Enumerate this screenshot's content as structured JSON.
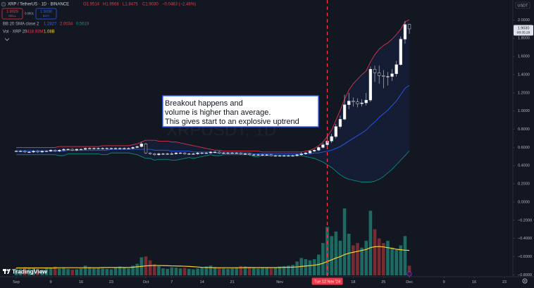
{
  "chart_data": {
    "type": "candlestick",
    "symbol": "XRP / TetherUS · 1D · BINANCE",
    "ohlc_legend": [
      "O1.9514",
      "H1.9568",
      "L1.8475",
      "C1.9030",
      "−0.0483 (−2.48%)"
    ],
    "trade_buttons": {
      "sell_price": "1.9029",
      "sell": "SELL",
      "spread": "0.0001",
      "buy_price": "1.9030",
      "buy": "BUY"
    },
    "bb_legend": {
      "name": "BB 20 SMA close 2",
      "values": [
        "1.2827",
        "2.0034",
        "0.5619"
      ]
    },
    "vol_legend": {
      "name": "Vol · XRP 20",
      "values": [
        "418.93M",
        "1.08B"
      ]
    },
    "currency": "USDT",
    "watermark": "XRPUSDT, 1D",
    "branding": "TradingView",
    "annotation": [
      "Breakout happens and",
      "volume is higher than average.",
      "This gives start to an explosive uptrend"
    ],
    "last_price_label": "1.9030",
    "countdown": "08:35:29",
    "crosshair": {
      "value": "2024-11-12",
      "label": "Tue 12 Nov '24",
      "color": "#f23645"
    },
    "x": [
      "2024-09-01",
      "2024-09-02",
      "2024-09-03",
      "2024-09-04",
      "2024-09-05",
      "2024-09-06",
      "2024-09-07",
      "2024-09-08",
      "2024-09-09",
      "2024-09-10",
      "2024-09-11",
      "2024-09-12",
      "2024-09-13",
      "2024-09-14",
      "2024-09-15",
      "2024-09-16",
      "2024-09-17",
      "2024-09-18",
      "2024-09-19",
      "2024-09-20",
      "2024-09-21",
      "2024-09-22",
      "2024-09-23",
      "2024-09-24",
      "2024-09-25",
      "2024-09-26",
      "2024-09-27",
      "2024-09-28",
      "2024-09-29",
      "2024-09-30",
      "2024-10-01",
      "2024-10-02",
      "2024-10-03",
      "2024-10-04",
      "2024-10-05",
      "2024-10-06",
      "2024-10-07",
      "2024-10-08",
      "2024-10-09",
      "2024-10-10",
      "2024-10-11",
      "2024-10-12",
      "2024-10-13",
      "2024-10-14",
      "2024-10-15",
      "2024-10-16",
      "2024-10-17",
      "2024-10-18",
      "2024-10-19",
      "2024-10-20",
      "2024-10-21",
      "2024-10-22",
      "2024-10-23",
      "2024-10-24",
      "2024-10-25",
      "2024-10-26",
      "2024-10-27",
      "2024-10-28",
      "2024-10-29",
      "2024-10-30",
      "2024-10-31",
      "2024-11-01",
      "2024-11-02",
      "2024-11-03",
      "2024-11-04",
      "2024-11-05",
      "2024-11-06",
      "2024-11-07",
      "2024-11-08",
      "2024-11-09",
      "2024-11-10",
      "2024-11-11",
      "2024-11-12",
      "2024-11-13",
      "2024-11-14",
      "2024-11-15",
      "2024-11-16",
      "2024-11-17",
      "2024-11-18",
      "2024-11-19",
      "2024-11-20",
      "2024-11-21",
      "2024-11-22",
      "2024-11-23",
      "2024-11-24",
      "2024-11-25",
      "2024-11-26",
      "2024-11-27",
      "2024-11-28",
      "2024-11-29",
      "2024-11-30",
      "2024-12-01"
    ],
    "open": [
      0.56,
      0.56,
      0.56,
      0.55,
      0.55,
      0.56,
      0.55,
      0.56,
      0.56,
      0.57,
      0.56,
      0.57,
      0.58,
      0.58,
      0.57,
      0.58,
      0.58,
      0.59,
      0.59,
      0.59,
      0.59,
      0.59,
      0.59,
      0.59,
      0.59,
      0.59,
      0.59,
      0.59,
      0.6,
      0.61,
      0.64,
      0.54,
      0.53,
      0.52,
      0.53,
      0.53,
      0.53,
      0.53,
      0.54,
      0.54,
      0.53,
      0.53,
      0.53,
      0.54,
      0.54,
      0.54,
      0.55,
      0.55,
      0.54,
      0.54,
      0.54,
      0.54,
      0.54,
      0.53,
      0.53,
      0.52,
      0.52,
      0.52,
      0.52,
      0.52,
      0.51,
      0.51,
      0.51,
      0.51,
      0.51,
      0.51,
      0.52,
      0.53,
      0.54,
      0.56,
      0.57,
      0.6,
      0.63,
      0.67,
      0.72,
      0.83,
      0.91,
      1.07,
      1.11,
      1.1,
      1.08,
      1.09,
      1.12,
      1.46,
      1.42,
      1.39,
      1.38,
      1.38,
      1.41,
      1.51,
      1.79,
      1.9514
    ],
    "high": [
      0.57,
      0.57,
      0.57,
      0.56,
      0.57,
      0.57,
      0.57,
      0.57,
      0.58,
      0.58,
      0.58,
      0.59,
      0.59,
      0.59,
      0.59,
      0.59,
      0.6,
      0.6,
      0.6,
      0.6,
      0.6,
      0.6,
      0.6,
      0.6,
      0.6,
      0.6,
      0.6,
      0.61,
      0.62,
      0.66,
      0.65,
      0.55,
      0.54,
      0.54,
      0.54,
      0.54,
      0.55,
      0.55,
      0.55,
      0.55,
      0.54,
      0.54,
      0.55,
      0.55,
      0.55,
      0.56,
      0.56,
      0.56,
      0.55,
      0.55,
      0.55,
      0.55,
      0.55,
      0.54,
      0.54,
      0.53,
      0.53,
      0.53,
      0.53,
      0.53,
      0.52,
      0.52,
      0.52,
      0.52,
      0.52,
      0.53,
      0.55,
      0.55,
      0.57,
      0.58,
      0.61,
      0.65,
      0.72,
      0.75,
      0.86,
      0.95,
      1.18,
      1.2,
      1.15,
      1.14,
      1.13,
      1.2,
      1.49,
      1.5,
      1.5,
      1.45,
      1.43,
      1.46,
      1.55,
      1.82,
      1.99,
      1.9568
    ],
    "low": [
      0.55,
      0.55,
      0.54,
      0.54,
      0.54,
      0.54,
      0.54,
      0.55,
      0.55,
      0.55,
      0.55,
      0.56,
      0.57,
      0.56,
      0.56,
      0.57,
      0.57,
      0.58,
      0.58,
      0.58,
      0.58,
      0.58,
      0.58,
      0.58,
      0.58,
      0.58,
      0.58,
      0.58,
      0.59,
      0.6,
      0.53,
      0.52,
      0.51,
      0.51,
      0.52,
      0.52,
      0.52,
      0.52,
      0.53,
      0.52,
      0.52,
      0.52,
      0.52,
      0.53,
      0.53,
      0.53,
      0.54,
      0.53,
      0.53,
      0.53,
      0.53,
      0.53,
      0.52,
      0.52,
      0.51,
      0.51,
      0.51,
      0.51,
      0.51,
      0.5,
      0.5,
      0.5,
      0.5,
      0.5,
      0.5,
      0.5,
      0.51,
      0.52,
      0.53,
      0.55,
      0.56,
      0.59,
      0.61,
      0.65,
      0.7,
      0.81,
      0.9,
      1.02,
      1.05,
      1.04,
      1.05,
      1.06,
      1.1,
      1.32,
      1.3,
      1.25,
      1.28,
      1.33,
      1.38,
      1.5,
      1.74,
      1.8475
    ],
    "close": [
      0.56,
      0.56,
      0.55,
      0.55,
      0.56,
      0.55,
      0.56,
      0.56,
      0.57,
      0.56,
      0.57,
      0.58,
      0.58,
      0.57,
      0.58,
      0.58,
      0.59,
      0.59,
      0.59,
      0.59,
      0.59,
      0.59,
      0.59,
      0.59,
      0.59,
      0.59,
      0.59,
      0.6,
      0.61,
      0.64,
      0.54,
      0.53,
      0.52,
      0.53,
      0.53,
      0.53,
      0.53,
      0.54,
      0.54,
      0.53,
      0.53,
      0.53,
      0.54,
      0.54,
      0.54,
      0.55,
      0.55,
      0.54,
      0.54,
      0.54,
      0.54,
      0.54,
      0.53,
      0.53,
      0.52,
      0.52,
      0.52,
      0.52,
      0.52,
      0.51,
      0.51,
      0.51,
      0.51,
      0.51,
      0.51,
      0.52,
      0.53,
      0.54,
      0.56,
      0.57,
      0.6,
      0.63,
      0.67,
      0.72,
      0.83,
      0.91,
      1.07,
      1.11,
      1.1,
      1.08,
      1.09,
      1.12,
      1.46,
      1.42,
      1.39,
      1.38,
      1.38,
      1.41,
      1.51,
      1.79,
      1.95,
      1.903
    ],
    "up_color": "#ffffff",
    "down_color": "#131722",
    "border_color": "#d1d4dc",
    "ylim": [
      -0.82,
      2.22
    ],
    "yticks": [
      {
        "value": 2,
        "label": "2.0000"
      },
      {
        "value": 1.8,
        "label": "1.8000"
      },
      {
        "value": 1.6,
        "label": "1.6000"
      },
      {
        "value": 1.4,
        "label": "1.4000"
      },
      {
        "value": 1.2,
        "label": "1.2000"
      },
      {
        "value": 1,
        "label": "1.0000"
      },
      {
        "value": 0.8,
        "label": "0.8000"
      },
      {
        "value": 0.6,
        "label": "0.6000"
      },
      {
        "value": 0.4,
        "label": "0.4000"
      },
      {
        "value": 0.2,
        "label": "0.2000"
      },
      {
        "value": 0,
        "label": "0.0000"
      },
      {
        "value": -0.2,
        "label": "−0.2000"
      },
      {
        "value": -0.4,
        "label": "−0.4000"
      },
      {
        "value": -0.6,
        "label": "−0.6000"
      },
      {
        "value": -0.8,
        "label": "−0.8000"
      }
    ],
    "xticks": [
      {
        "value": "2024-09-01",
        "label": "Sep"
      },
      {
        "value": "2024-09-09",
        "label": "9"
      },
      {
        "value": "2024-09-16",
        "label": "16"
      },
      {
        "value": "2024-09-23",
        "label": "23"
      },
      {
        "value": "2024-10-01",
        "label": "Oct"
      },
      {
        "value": "2024-10-07",
        "label": "7"
      },
      {
        "value": "2024-10-14",
        "label": "14"
      },
      {
        "value": "2024-10-21",
        "label": "21"
      },
      {
        "value": "2024-11-01",
        "label": "Nov"
      },
      {
        "value": "2024-11-18",
        "label": "18"
      },
      {
        "value": "2024-11-25",
        "label": "25"
      },
      {
        "value": "2024-12-01",
        "label": "Dec"
      },
      {
        "value": "2024-12-09",
        "label": "9"
      },
      {
        "value": "2024-12-16",
        "label": "16"
      },
      {
        "value": "2024-12-23",
        "label": "23"
      }
    ],
    "bollinger": {
      "fill": "rgba(41,98,255,0.09)",
      "upper": {
        "color": "#f23645",
        "values": [
          0.6,
          0.6,
          0.6,
          0.6,
          0.6,
          0.6,
          0.6,
          0.6,
          0.6,
          0.6,
          0.61,
          0.61,
          0.61,
          0.61,
          0.61,
          0.61,
          0.61,
          0.61,
          0.61,
          0.61,
          0.62,
          0.62,
          0.62,
          0.62,
          0.62,
          0.62,
          0.62,
          0.63,
          0.64,
          0.66,
          0.68,
          0.68,
          0.68,
          0.67,
          0.67,
          0.67,
          0.66,
          0.66,
          0.65,
          0.64,
          0.63,
          0.62,
          0.61,
          0.6,
          0.59,
          0.58,
          0.57,
          0.57,
          0.56,
          0.56,
          0.56,
          0.56,
          0.56,
          0.56,
          0.56,
          0.56,
          0.56,
          0.55,
          0.55,
          0.55,
          0.55,
          0.55,
          0.55,
          0.55,
          0.55,
          0.55,
          0.55,
          0.56,
          0.57,
          0.59,
          0.62,
          0.66,
          0.72,
          0.79,
          0.9,
          1.01,
          1.13,
          1.23,
          1.3,
          1.35,
          1.4,
          1.44,
          1.54,
          1.62,
          1.68,
          1.72,
          1.75,
          1.79,
          1.84,
          1.9,
          1.98,
          2.0034
        ]
      },
      "basis": {
        "color": "#2962ff",
        "values": [
          0.56,
          0.56,
          0.56,
          0.56,
          0.56,
          0.56,
          0.56,
          0.56,
          0.56,
          0.56,
          0.56,
          0.56,
          0.57,
          0.57,
          0.57,
          0.57,
          0.57,
          0.57,
          0.57,
          0.57,
          0.57,
          0.57,
          0.58,
          0.58,
          0.58,
          0.58,
          0.58,
          0.58,
          0.58,
          0.58,
          0.58,
          0.58,
          0.57,
          0.57,
          0.57,
          0.57,
          0.56,
          0.56,
          0.56,
          0.56,
          0.56,
          0.55,
          0.55,
          0.55,
          0.55,
          0.55,
          0.54,
          0.54,
          0.54,
          0.54,
          0.54,
          0.54,
          0.54,
          0.54,
          0.54,
          0.53,
          0.53,
          0.53,
          0.53,
          0.53,
          0.53,
          0.53,
          0.53,
          0.53,
          0.53,
          0.53,
          0.53,
          0.53,
          0.53,
          0.54,
          0.54,
          0.55,
          0.56,
          0.57,
          0.59,
          0.61,
          0.64,
          0.67,
          0.7,
          0.73,
          0.76,
          0.79,
          0.84,
          0.88,
          0.93,
          0.97,
          1.01,
          1.06,
          1.11,
          1.18,
          1.25,
          1.2827
        ]
      },
      "lower": {
        "color": "#089981",
        "values": [
          0.52,
          0.52,
          0.52,
          0.52,
          0.52,
          0.52,
          0.52,
          0.52,
          0.52,
          0.52,
          0.51,
          0.51,
          0.53,
          0.53,
          0.53,
          0.53,
          0.53,
          0.53,
          0.53,
          0.53,
          0.52,
          0.52,
          0.54,
          0.54,
          0.54,
          0.54,
          0.54,
          0.53,
          0.52,
          0.5,
          0.48,
          0.48,
          0.46,
          0.47,
          0.47,
          0.47,
          0.46,
          0.46,
          0.47,
          0.48,
          0.49,
          0.48,
          0.49,
          0.5,
          0.51,
          0.52,
          0.51,
          0.51,
          0.52,
          0.52,
          0.52,
          0.52,
          0.52,
          0.52,
          0.52,
          0.5,
          0.5,
          0.51,
          0.51,
          0.51,
          0.51,
          0.51,
          0.51,
          0.51,
          0.51,
          0.51,
          0.51,
          0.5,
          0.49,
          0.48,
          0.46,
          0.44,
          0.41,
          0.38,
          0.34,
          0.3,
          0.27,
          0.25,
          0.24,
          0.23,
          0.22,
          0.22,
          0.22,
          0.23,
          0.25,
          0.28,
          0.32,
          0.36,
          0.41,
          0.46,
          0.51,
          0.5619
        ]
      }
    },
    "volume": {
      "up_color": "#1e6a63",
      "down_color": "#7a2b31",
      "values": [
        300,
        280,
        350,
        320,
        300,
        260,
        250,
        330,
        310,
        380,
        300,
        320,
        280,
        250,
        260,
        300,
        420,
        360,
        330,
        320,
        300,
        280,
        260,
        340,
        380,
        350,
        300,
        420,
        500,
        780,
        820,
        650,
        480,
        400,
        300,
        280,
        350,
        330,
        300,
        320,
        280,
        260,
        300,
        350,
        380,
        420,
        360,
        330,
        300,
        290,
        310,
        350,
        400,
        380,
        360,
        330,
        300,
        320,
        340,
        310,
        330,
        380,
        400,
        420,
        450,
        600,
        750,
        700,
        650,
        700,
        900,
        1400,
        2100,
        1700,
        1900,
        1500,
        2900,
        1800,
        1300,
        1400,
        1200,
        1500,
        2800,
        2000,
        1600,
        1400,
        1500,
        1200,
        1100,
        1300,
        1700,
        418.93
      ],
      "ma": {
        "color": "#f7d02c",
        "values": [
          320,
          320,
          320,
          320,
          320,
          320,
          320,
          320,
          320,
          320,
          330,
          330,
          330,
          330,
          330,
          330,
          330,
          330,
          330,
          330,
          340,
          340,
          340,
          340,
          340,
          340,
          340,
          350,
          370,
          390,
          410,
          420,
          425,
          425,
          420,
          415,
          410,
          405,
          400,
          395,
          385,
          375,
          360,
          345,
          340,
          335,
          330,
          330,
          330,
          330,
          330,
          330,
          330,
          335,
          335,
          335,
          335,
          335,
          335,
          335,
          335,
          340,
          345,
          350,
          355,
          365,
          385,
          405,
          420,
          440,
          470,
          520,
          600,
          670,
          750,
          810,
          900,
          960,
          1000,
          1040,
          1080,
          1120,
          1200,
          1240,
          1250,
          1230,
          1200,
          1170,
          1130,
          1110,
          1090,
          1080
        ]
      }
    }
  }
}
